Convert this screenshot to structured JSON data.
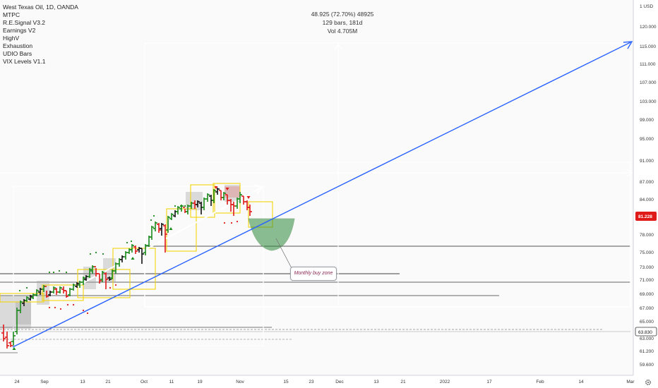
{
  "legend": {
    "title": "West Texas Oil, 1D, OANDA",
    "indicators": [
      "MTPC",
      "R.E.Signal V3.2",
      "Earnings V2",
      "HighV",
      "Exhaustion",
      "UDIO Bars",
      "VIX Levels V1.1"
    ]
  },
  "measure": {
    "line1": "48.925 (72.70%) 48925",
    "line2": "129 bars, 181d",
    "line3": "Vol 4.705M"
  },
  "callout": {
    "text": "Monthly buy zone"
  },
  "price_axis": {
    "unit_label": "1 USD",
    "ticks": [
      "120.000",
      "115.000",
      "111.000",
      "107.000",
      "103.000",
      "99.000",
      "95.000",
      "91.000",
      "87.000",
      "84.000",
      "81.228",
      "78.000",
      "75.000",
      "73.000",
      "71.000",
      "69.000",
      "67.000",
      "65.000",
      "63.830",
      "63.000",
      "61.200",
      "59.600"
    ],
    "current_price": "81.228",
    "marked_price": "63.830"
  },
  "time_axis": {
    "labels": [
      "24",
      "Sep",
      "13",
      "21",
      "Oct",
      "11",
      "19",
      "Nov",
      "15",
      "23",
      "Dec",
      "13",
      "21",
      "2022",
      "17",
      "Feb",
      "14",
      "Mar"
    ]
  },
  "colors": {
    "up_bar": "#1b8a1b",
    "down_bar": "#e01919",
    "neutral_bar": "#111111",
    "trendline": "#2962ff",
    "current_price_badge": "#e01919",
    "buy_zone": "#2e8b3a",
    "highlight_box": "#f2d40c",
    "measure_box": "#ffffff"
  },
  "icons": {
    "settings": "gear-icon",
    "logo": "tradingview-logo-icon"
  }
}
